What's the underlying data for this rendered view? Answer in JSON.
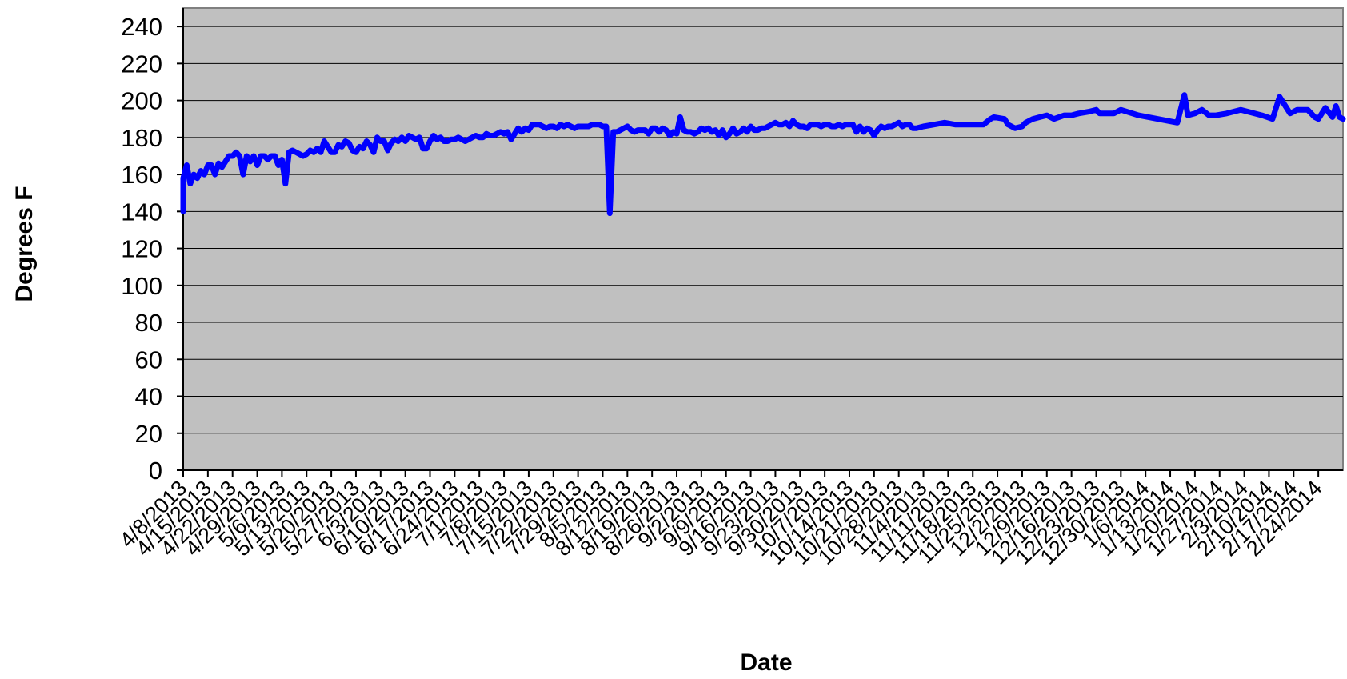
{
  "chart_data": {
    "type": "line",
    "xlabel": "Date",
    "ylabel": "Degrees F",
    "ylim": [
      0,
      250
    ],
    "yticks": [
      0,
      20,
      40,
      60,
      80,
      100,
      120,
      140,
      160,
      180,
      200,
      220,
      240
    ],
    "grid": true,
    "legend": "none",
    "x_tick_labels": [
      "4/8/2013",
      "4/15/2013",
      "4/22/2013",
      "4/29/2013",
      "5/6/2013",
      "5/13/2013",
      "5/20/2013",
      "5/27/2013",
      "6/3/2013",
      "6/10/2013",
      "6/17/2013",
      "6/24/2013",
      "7/1/2013",
      "7/8/2013",
      "7/15/2013",
      "7/22/2013",
      "7/29/2013",
      "8/5/2013",
      "8/12/2013",
      "8/19/2013",
      "8/26/2013",
      "9/2/2013",
      "9/9/2013",
      "9/16/2013",
      "9/23/2013",
      "9/30/2013",
      "10/7/2013",
      "10/14/2013",
      "10/21/2013",
      "10/28/2013",
      "11/4/2013",
      "11/11/2013",
      "11/18/2013",
      "11/25/2013",
      "12/2/2013",
      "12/9/2013",
      "12/16/2013",
      "12/23/2013",
      "12/30/2013",
      "1/6/2014",
      "1/13/2014",
      "1/20/2014",
      "1/27/2014",
      "2/3/2014",
      "2/10/2014",
      "2/17/2014",
      "2/24/2014"
    ],
    "x_range": [
      "4/8/2013",
      "3/3/2014"
    ],
    "series": [
      {
        "color": "#0000ff",
        "points": [
          [
            "4/8/2013",
            140
          ],
          [
            "4/8/2013",
            158
          ],
          [
            "4/9/2013",
            165
          ],
          [
            "4/10/2013",
            155
          ],
          [
            "4/11/2013",
            160
          ],
          [
            "4/12/2013",
            158
          ],
          [
            "4/13/2013",
            162
          ],
          [
            "4/14/2013",
            160
          ],
          [
            "4/15/2013",
            165
          ],
          [
            "4/16/2013",
            165
          ],
          [
            "4/17/2013",
            160
          ],
          [
            "4/18/2013",
            166
          ],
          [
            "4/19/2013",
            164
          ],
          [
            "4/20/2013",
            167
          ],
          [
            "4/21/2013",
            170
          ],
          [
            "4/22/2013",
            170
          ],
          [
            "4/23/2013",
            172
          ],
          [
            "4/24/2013",
            170
          ],
          [
            "4/25/2013",
            160
          ],
          [
            "4/26/2013",
            170
          ],
          [
            "4/27/2013",
            167
          ],
          [
            "4/28/2013",
            170
          ],
          [
            "4/29/2013",
            165
          ],
          [
            "4/30/2013",
            170
          ],
          [
            "5/1/2013",
            170
          ],
          [
            "5/2/2013",
            168
          ],
          [
            "5/3/2013",
            170
          ],
          [
            "5/4/2013",
            170
          ],
          [
            "5/5/2013",
            165
          ],
          [
            "5/6/2013",
            168
          ],
          [
            "5/7/2013",
            155
          ],
          [
            "5/8/2013",
            172
          ],
          [
            "5/9/2013",
            173
          ],
          [
            "5/10/2013",
            172
          ],
          [
            "5/11/2013",
            171
          ],
          [
            "5/12/2013",
            170
          ],
          [
            "5/13/2013",
            171
          ],
          [
            "5/14/2013",
            173
          ],
          [
            "5/15/2013",
            172
          ],
          [
            "5/16/2013",
            174
          ],
          [
            "5/17/2013",
            172
          ],
          [
            "5/18/2013",
            178
          ],
          [
            "5/19/2013",
            175
          ],
          [
            "5/20/2013",
            172
          ],
          [
            "5/21/2013",
            172
          ],
          [
            "5/22/2013",
            176
          ],
          [
            "5/23/2013",
            175
          ],
          [
            "5/24/2013",
            178
          ],
          [
            "5/25/2013",
            177
          ],
          [
            "5/26/2013",
            173
          ],
          [
            "5/27/2013",
            172
          ],
          [
            "5/28/2013",
            175
          ],
          [
            "5/29/2013",
            174
          ],
          [
            "5/30/2013",
            178
          ],
          [
            "5/31/2013",
            176
          ],
          [
            "6/1/2013",
            172
          ],
          [
            "6/2/2013",
            180
          ],
          [
            "6/3/2013",
            178
          ],
          [
            "6/4/2013",
            178
          ],
          [
            "6/5/2013",
            173
          ],
          [
            "6/6/2013",
            177
          ],
          [
            "6/7/2013",
            179
          ],
          [
            "6/8/2013",
            178
          ],
          [
            "6/9/2013",
            180
          ],
          [
            "6/10/2013",
            178
          ],
          [
            "6/11/2013",
            181
          ],
          [
            "6/12/2013",
            180
          ],
          [
            "6/13/2013",
            179
          ],
          [
            "6/14/2013",
            180
          ],
          [
            "6/15/2013",
            174
          ],
          [
            "6/16/2013",
            174
          ],
          [
            "6/17/2013",
            178
          ],
          [
            "6/18/2013",
            181
          ],
          [
            "6/19/2013",
            179
          ],
          [
            "6/20/2013",
            180
          ],
          [
            "6/21/2013",
            178
          ],
          [
            "6/22/2013",
            178
          ],
          [
            "6/23/2013",
            179
          ],
          [
            "6/24/2013",
            179
          ],
          [
            "6/25/2013",
            180
          ],
          [
            "6/26/2013",
            179
          ],
          [
            "6/27/2013",
            178
          ],
          [
            "6/28/2013",
            179
          ],
          [
            "6/29/2013",
            180
          ],
          [
            "6/30/2013",
            181
          ],
          [
            "7/1/2013",
            180
          ],
          [
            "7/2/2013",
            180
          ],
          [
            "7/3/2013",
            182
          ],
          [
            "7/4/2013",
            181
          ],
          [
            "7/5/2013",
            181
          ],
          [
            "7/6/2013",
            182
          ],
          [
            "7/7/2013",
            183
          ],
          [
            "7/8/2013",
            182
          ],
          [
            "7/9/2013",
            183
          ],
          [
            "7/10/2013",
            179
          ],
          [
            "7/11/2013",
            182
          ],
          [
            "7/12/2013",
            185
          ],
          [
            "7/13/2013",
            183
          ],
          [
            "7/14/2013",
            185
          ],
          [
            "7/15/2013",
            184
          ],
          [
            "7/16/2013",
            187
          ],
          [
            "7/17/2013",
            187
          ],
          [
            "7/18/2013",
            187
          ],
          [
            "7/19/2013",
            186
          ],
          [
            "7/20/2013",
            185
          ],
          [
            "7/21/2013",
            186
          ],
          [
            "7/22/2013",
            186
          ],
          [
            "7/23/2013",
            185
          ],
          [
            "7/24/2013",
            187
          ],
          [
            "7/25/2013",
            186
          ],
          [
            "7/26/2013",
            187
          ],
          [
            "7/27/2013",
            186
          ],
          [
            "7/28/2013",
            185
          ],
          [
            "7/29/2013",
            186
          ],
          [
            "7/30/2013",
            186
          ],
          [
            "7/31/2013",
            186
          ],
          [
            "8/1/2013",
            186
          ],
          [
            "8/2/2013",
            187
          ],
          [
            "8/3/2013",
            187
          ],
          [
            "8/4/2013",
            187
          ],
          [
            "8/5/2013",
            186
          ],
          [
            "8/6/2013",
            186
          ],
          [
            "8/7/2013",
            139
          ],
          [
            "8/8/2013",
            183
          ],
          [
            "8/9/2013",
            183
          ],
          [
            "8/10/2013",
            184
          ],
          [
            "8/11/2013",
            185
          ],
          [
            "8/12/2013",
            186
          ],
          [
            "8/13/2013",
            184
          ],
          [
            "8/14/2013",
            183
          ],
          [
            "8/15/2013",
            184
          ],
          [
            "8/16/2013",
            184
          ],
          [
            "8/17/2013",
            184
          ],
          [
            "8/18/2013",
            182
          ],
          [
            "8/19/2013",
            185
          ],
          [
            "8/20/2013",
            185
          ],
          [
            "8/21/2013",
            183
          ],
          [
            "8/22/2013",
            185
          ],
          [
            "8/23/2013",
            184
          ],
          [
            "8/24/2013",
            181
          ],
          [
            "8/25/2013",
            183
          ],
          [
            "8/26/2013",
            182
          ],
          [
            "8/27/2013",
            191
          ],
          [
            "8/28/2013",
            184
          ],
          [
            "8/29/2013",
            183
          ],
          [
            "8/30/2013",
            183
          ],
          [
            "8/31/2013",
            182
          ],
          [
            "9/1/2013",
            183
          ],
          [
            "9/2/2013",
            185
          ],
          [
            "9/3/2013",
            184
          ],
          [
            "9/4/2013",
            185
          ],
          [
            "9/5/2013",
            183
          ],
          [
            "9/6/2013",
            184
          ],
          [
            "9/7/2013",
            181
          ],
          [
            "9/8/2013",
            184
          ],
          [
            "9/9/2013",
            180
          ],
          [
            "9/10/2013",
            182
          ],
          [
            "9/11/2013",
            185
          ],
          [
            "9/12/2013",
            182
          ],
          [
            "9/13/2013",
            183
          ],
          [
            "9/14/2013",
            185
          ],
          [
            "9/15/2013",
            183
          ],
          [
            "9/16/2013",
            186
          ],
          [
            "9/17/2013",
            184
          ],
          [
            "9/18/2013",
            184
          ],
          [
            "9/19/2013",
            185
          ],
          [
            "9/20/2013",
            185
          ],
          [
            "9/21/2013",
            186
          ],
          [
            "9/22/2013",
            187
          ],
          [
            "9/23/2013",
            188
          ],
          [
            "9/24/2013",
            187
          ],
          [
            "9/25/2013",
            187
          ],
          [
            "9/26/2013",
            188
          ],
          [
            "9/27/2013",
            186
          ],
          [
            "9/28/2013",
            189
          ],
          [
            "9/29/2013",
            187
          ],
          [
            "9/30/2013",
            186
          ],
          [
            "10/1/2013",
            186
          ],
          [
            "10/2/2013",
            185
          ],
          [
            "10/3/2013",
            187
          ],
          [
            "10/4/2013",
            187
          ],
          [
            "10/5/2013",
            187
          ],
          [
            "10/6/2013",
            186
          ],
          [
            "10/7/2013",
            187
          ],
          [
            "10/8/2013",
            187
          ],
          [
            "10/9/2013",
            186
          ],
          [
            "10/10/2013",
            186
          ],
          [
            "10/11/2013",
            187
          ],
          [
            "10/12/2013",
            186
          ],
          [
            "10/13/2013",
            187
          ],
          [
            "10/14/2013",
            187
          ],
          [
            "10/15/2013",
            187
          ],
          [
            "10/16/2013",
            183
          ],
          [
            "10/17/2013",
            186
          ],
          [
            "10/18/2013",
            183
          ],
          [
            "10/19/2013",
            185
          ],
          [
            "10/20/2013",
            184
          ],
          [
            "10/21/2013",
            181
          ],
          [
            "10/22/2013",
            184
          ],
          [
            "10/23/2013",
            186
          ],
          [
            "10/24/2013",
            185
          ],
          [
            "10/25/2013",
            186
          ],
          [
            "10/26/2013",
            186
          ],
          [
            "10/27/2013",
            187
          ],
          [
            "10/28/2013",
            188
          ],
          [
            "10/29/2013",
            186
          ],
          [
            "10/30/2013",
            187
          ],
          [
            "10/31/2013",
            187
          ],
          [
            "11/1/2013",
            185
          ],
          [
            "11/2/2013",
            185
          ],
          [
            "11/4/2013",
            186
          ],
          [
            "11/7/2013",
            187
          ],
          [
            "11/10/2013",
            188
          ],
          [
            "11/13/2013",
            187
          ],
          [
            "11/17/2013",
            187
          ],
          [
            "11/21/2013",
            187
          ],
          [
            "11/23/2013",
            190
          ],
          [
            "11/24/2013",
            191
          ],
          [
            "11/27/2013",
            190
          ],
          [
            "11/28/2013",
            187
          ],
          [
            "11/30/2013",
            185
          ],
          [
            "12/2/2013",
            186
          ],
          [
            "12/3/2013",
            188
          ],
          [
            "12/5/2013",
            190
          ],
          [
            "12/7/2013",
            191
          ],
          [
            "12/9/2013",
            192
          ],
          [
            "12/11/2013",
            190
          ],
          [
            "12/14/2013",
            192
          ],
          [
            "12/16/2013",
            192
          ],
          [
            "12/18/2013",
            193
          ],
          [
            "12/21/2013",
            194
          ],
          [
            "12/23/2013",
            195
          ],
          [
            "12/24/2013",
            193
          ],
          [
            "12/28/2013",
            193
          ],
          [
            "12/30/2013",
            195
          ],
          [
            "1/4/2014",
            192
          ],
          [
            "1/15/2014",
            188
          ],
          [
            "1/17/2014",
            203
          ],
          [
            "1/18/2014",
            192
          ],
          [
            "1/20/2014",
            193
          ],
          [
            "1/22/2014",
            195
          ],
          [
            "1/24/2014",
            192
          ],
          [
            "1/26/2014",
            192
          ],
          [
            "1/29/2014",
            193
          ],
          [
            "2/2/2014",
            195
          ],
          [
            "2/8/2014",
            192
          ],
          [
            "2/11/2014",
            190
          ],
          [
            "2/13/2014",
            202
          ],
          [
            "2/16/2014",
            193
          ],
          [
            "2/18/2014",
            195
          ],
          [
            "2/21/2014",
            195
          ],
          [
            "2/23/2014",
            191
          ],
          [
            "2/24/2014",
            190
          ],
          [
            "2/26/2014",
            196
          ],
          [
            "2/28/2014",
            191
          ],
          [
            "3/1/2014",
            197
          ],
          [
            "3/2/2014",
            191
          ],
          [
            "3/3/2014",
            190
          ]
        ]
      }
    ]
  }
}
